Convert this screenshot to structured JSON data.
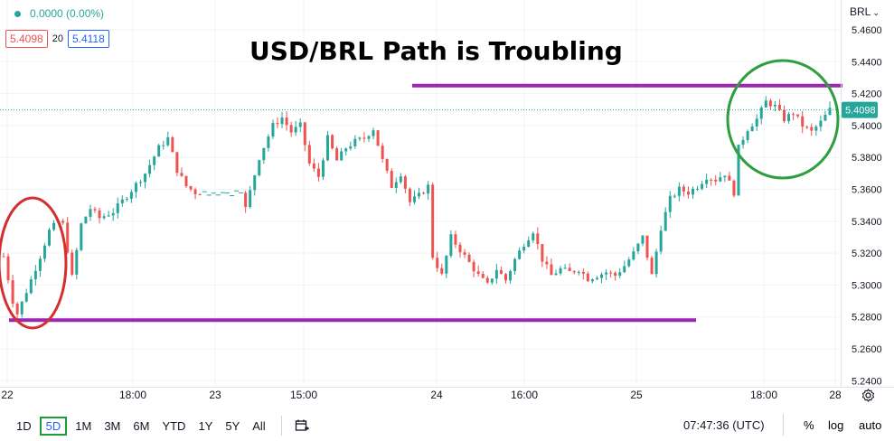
{
  "header": {
    "change_text": "0.0000 (0.00%)",
    "bid": "5.4098",
    "spread": "20",
    "ask": "5.4118",
    "currency_selector": "BRL"
  },
  "chart_data": {
    "type": "candlestick",
    "title": "USD/BRL Path is Troubling",
    "y_ticks": [
      "5.4600",
      "5.4400",
      "5.4200",
      "5.4000",
      "5.3800",
      "5.3600",
      "5.3400",
      "5.3200",
      "5.3000",
      "5.2800",
      "5.2600",
      "5.2400"
    ],
    "ylim": [
      5.24,
      5.47
    ],
    "x_ticks": [
      "22",
      "18:00",
      "23",
      "15:00",
      "24",
      "16:00",
      "25",
      "18:00",
      "28"
    ],
    "last_price": "5.4098",
    "last_value": 5.4098,
    "path": [
      [
        0,
        5.318
      ],
      [
        2,
        5.29
      ],
      [
        3,
        5.282
      ],
      [
        5,
        5.296
      ],
      [
        8,
        5.318
      ],
      [
        10,
        5.334
      ],
      [
        12,
        5.34
      ],
      [
        13,
        5.338
      ],
      [
        14,
        5.322
      ],
      [
        15,
        5.305
      ],
      [
        17,
        5.338
      ],
      [
        19,
        5.348
      ],
      [
        21,
        5.342
      ],
      [
        24,
        5.346
      ],
      [
        27,
        5.356
      ],
      [
        29,
        5.363
      ],
      [
        31,
        5.37
      ],
      [
        34,
        5.386
      ],
      [
        36,
        5.392
      ],
      [
        38,
        5.372
      ],
      [
        40,
        5.362
      ],
      [
        42,
        5.358
      ],
      [
        44,
        5.358
      ],
      [
        52,
        5.358
      ],
      [
        53,
        5.348
      ],
      [
        56,
        5.38
      ],
      [
        59,
        5.4
      ],
      [
        61,
        5.405
      ],
      [
        63,
        5.396
      ],
      [
        65,
        5.4
      ],
      [
        67,
        5.376
      ],
      [
        69,
        5.368
      ],
      [
        71,
        5.392
      ],
      [
        73,
        5.378
      ],
      [
        75,
        5.386
      ],
      [
        77,
        5.39
      ],
      [
        79,
        5.392
      ],
      [
        81,
        5.398
      ],
      [
        83,
        5.378
      ],
      [
        85,
        5.362
      ],
      [
        87,
        5.37
      ],
      [
        89,
        5.352
      ],
      [
        91,
        5.356
      ],
      [
        93,
        5.362
      ],
      [
        94,
        5.318
      ],
      [
        96,
        5.306
      ],
      [
        98,
        5.33
      ],
      [
        100,
        5.322
      ],
      [
        102,
        5.314
      ],
      [
        104,
        5.306
      ],
      [
        106,
        5.3
      ],
      [
        108,
        5.31
      ],
      [
        110,
        5.303
      ],
      [
        112,
        5.316
      ],
      [
        114,
        5.326
      ],
      [
        116,
        5.334
      ],
      [
        118,
        5.316
      ],
      [
        120,
        5.306
      ],
      [
        122,
        5.31
      ],
      [
        124,
        5.308
      ],
      [
        126,
        5.31
      ],
      [
        128,
        5.304
      ],
      [
        130,
        5.306
      ],
      [
        132,
        5.308
      ],
      [
        134,
        5.306
      ],
      [
        136,
        5.312
      ],
      [
        138,
        5.32
      ],
      [
        140,
        5.33
      ],
      [
        142,
        5.306
      ],
      [
        144,
        5.336
      ],
      [
        146,
        5.354
      ],
      [
        148,
        5.36
      ],
      [
        150,
        5.358
      ],
      [
        152,
        5.362
      ],
      [
        154,
        5.368
      ],
      [
        156,
        5.366
      ],
      [
        158,
        5.37
      ],
      [
        160,
        5.358
      ],
      [
        161,
        5.386
      ],
      [
        163,
        5.398
      ],
      [
        165,
        5.404
      ],
      [
        167,
        5.415
      ],
      [
        169,
        5.412
      ],
      [
        171,
        5.404
      ],
      [
        173,
        5.408
      ],
      [
        175,
        5.4
      ],
      [
        177,
        5.396
      ],
      [
        179,
        5.402
      ],
      [
        181,
        5.41
      ]
    ],
    "annotations": {
      "resistance_level": 5.425,
      "support_level": 5.278
    }
  },
  "bottom_bar": {
    "ranges": [
      "1D",
      "5D",
      "1M",
      "3M",
      "6M",
      "YTD",
      "1Y",
      "5Y",
      "All"
    ],
    "active_range": "5D",
    "clock": "07:47:36 (UTC)",
    "percent": "%",
    "log": "log",
    "auto": "auto"
  },
  "colors": {
    "up": "#26a69a",
    "down": "#ef5350",
    "resistance_line": "#9c27b0",
    "red_circle": "#d32f2f",
    "green_circle": "#2e9e3e",
    "price_dotted": "#26a69a"
  }
}
